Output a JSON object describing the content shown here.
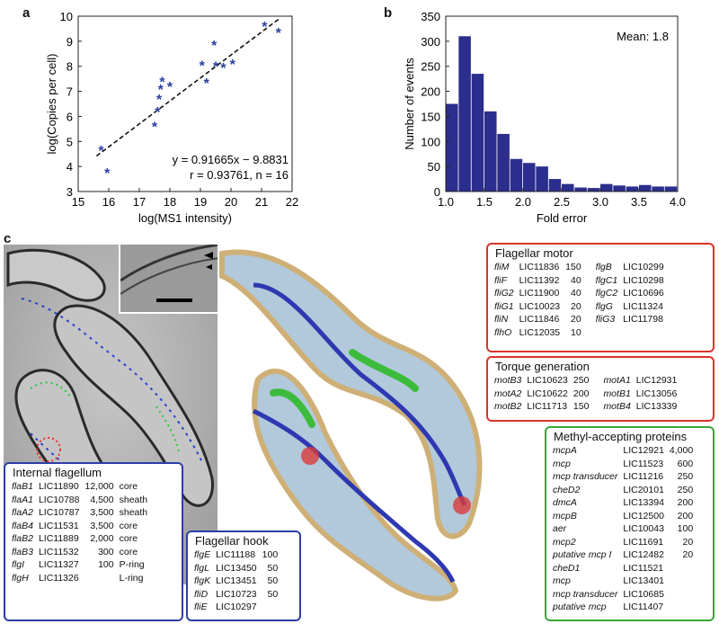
{
  "panels": {
    "a": "a",
    "b": "b",
    "c": "c"
  },
  "chart_data": [
    {
      "type": "scatter",
      "xlabel": "log(MS1 intensity)",
      "ylabel": "log(Copies per cell)",
      "xlim": [
        15,
        22
      ],
      "ylim": [
        3,
        10
      ],
      "xticks": [
        "15",
        "16",
        "17",
        "18",
        "19",
        "20",
        "21",
        "22"
      ],
      "yticks": [
        "3",
        "4",
        "5",
        "6",
        "7",
        "8",
        "9",
        "10"
      ],
      "points": [
        [
          15.75,
          4.65
        ],
        [
          15.95,
          3.75
        ],
        [
          17.5,
          5.6
        ],
        [
          17.6,
          6.2
        ],
        [
          17.65,
          6.7
        ],
        [
          17.7,
          7.1
        ],
        [
          17.75,
          7.4
        ],
        [
          18.0,
          7.2
        ],
        [
          19.05,
          8.05
        ],
        [
          19.2,
          7.35
        ],
        [
          19.45,
          8.85
        ],
        [
          19.5,
          8.0
        ],
        [
          19.75,
          7.95
        ],
        [
          20.05,
          8.1
        ],
        [
          21.1,
          9.6
        ],
        [
          21.55,
          9.35
        ]
      ],
      "fit_line": {
        "slope": 0.91665,
        "intercept": -9.8831
      },
      "eq_text": {
        "line1": "y = 0.91665x − 9.8831",
        "line2": "r = 0.93761, n = 16"
      },
      "marker_color": "#2a3fa0"
    },
    {
      "type": "bar",
      "xlabel": "Fold error",
      "ylabel": "Number of events",
      "xlim": [
        1.0,
        4.0
      ],
      "ylim": [
        0,
        350
      ],
      "xticks": [
        "1.0",
        "1.5",
        "2.0",
        "2.5",
        "3.0",
        "3.5",
        "4.0"
      ],
      "yticks": [
        "0",
        "50",
        "100",
        "150",
        "200",
        "250",
        "300",
        "350"
      ],
      "bin_width": 0.1667,
      "bin_starts": [
        1.0,
        1.1667,
        1.3333,
        1.5,
        1.6667,
        1.8333,
        2.0,
        2.1667,
        2.3333,
        2.5,
        2.6667,
        2.8333,
        3.0,
        3.1667,
        3.3333,
        3.5,
        3.6667,
        3.8333
      ],
      "values": [
        175,
        310,
        235,
        160,
        115,
        65,
        57,
        50,
        25,
        15,
        8,
        7,
        15,
        12,
        10,
        13,
        10,
        10
      ],
      "annotation": "Mean: 1.8",
      "bar_color": "#2b2e8c"
    }
  ],
  "boxes": {
    "internal": {
      "title": "Internal flagellum",
      "color": "#2c3ea6",
      "rows": [
        [
          "flaB1",
          "LIC11890",
          "12,000",
          "core"
        ],
        [
          "flaA1",
          "LIC10788",
          "4,500",
          "sheath"
        ],
        [
          "flaA2",
          "LIC10787",
          "3,500",
          "sheath"
        ],
        [
          "flaB4",
          "LIC11531",
          "3,500",
          "core"
        ],
        [
          "flaB2",
          "LIC11889",
          "2,000",
          "core"
        ],
        [
          "flaB3",
          "LIC11532",
          "300",
          "core"
        ],
        [
          "flgI",
          "LIC11327",
          "100",
          "P-ring"
        ],
        [
          "flgH",
          "LIC11326",
          "",
          "L-ring"
        ]
      ]
    },
    "hook": {
      "title": "Flagellar hook",
      "color": "#2c3ea6",
      "rows": [
        [
          "flgE",
          "LIC11188",
          "100"
        ],
        [
          "flgL",
          "LIC13450",
          "50"
        ],
        [
          "flgK",
          "LIC13451",
          "50"
        ],
        [
          "fliD",
          "LIC10723",
          "50"
        ],
        [
          "fliE",
          "LIC10297",
          ""
        ]
      ]
    },
    "motor": {
      "title": "Flagellar motor",
      "color": "#d9342b",
      "rows": [
        [
          "fliM",
          "LIC11836",
          "150",
          "flgB",
          "LIC10299"
        ],
        [
          "fliF",
          "LIC11392",
          "40",
          "flgC1",
          "LIC10298"
        ],
        [
          "fliG2",
          "LIC11900",
          "40",
          "flgC2",
          "LIC10696"
        ],
        [
          "fliG1",
          "LIC10023",
          "20",
          "flgG",
          "LIC11324"
        ],
        [
          "fliN",
          "LIC11846",
          "20",
          "fliG3",
          "LIC11798"
        ],
        [
          "flhO",
          "LIC12035",
          "10",
          "",
          ""
        ]
      ]
    },
    "torque": {
      "title": "Torque generation",
      "color": "#d9342b",
      "rows": [
        [
          "motB3",
          "LIC10623",
          "250",
          "motA1",
          "LIC12931"
        ],
        [
          "motA2",
          "LIC10622",
          "200",
          "motB1",
          "LIC13056"
        ],
        [
          "motB2",
          "LIC11713",
          "150",
          "motB4",
          "LIC13339"
        ]
      ]
    },
    "methyl": {
      "title": "Methyl-accepting proteins",
      "color": "#3aa63a",
      "rows": [
        [
          "mcpA",
          "LIC12921",
          "4,000"
        ],
        [
          "mcp",
          "LIC11523",
          "600"
        ],
        [
          "mcp transducer",
          "LIC11216",
          "250"
        ],
        [
          "cheD2",
          "LIC20101",
          "250"
        ],
        [
          "dmcA",
          "LIC13394",
          "200"
        ],
        [
          "mcpB",
          "LIC12500",
          "200"
        ],
        [
          "aer",
          "LIC10043",
          "100"
        ],
        [
          "mcp2",
          "LIC11691",
          "20"
        ],
        [
          "putative mcp I",
          "LIC12482",
          "20"
        ],
        [
          "cheD1",
          "LIC11521",
          ""
        ],
        [
          "mcp",
          "LIC13401",
          ""
        ],
        [
          "mcp transducer",
          "LIC10685",
          ""
        ],
        [
          "putative mcp",
          "LIC11407",
          ""
        ]
      ]
    }
  }
}
